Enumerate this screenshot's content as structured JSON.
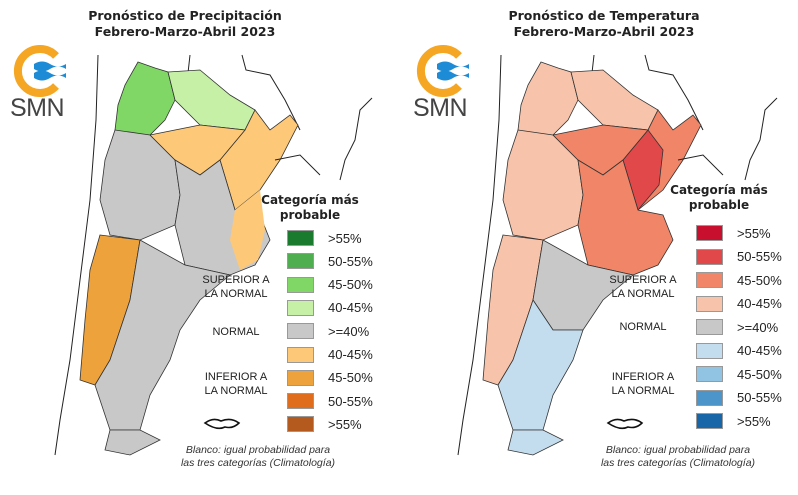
{
  "logo": {
    "text": "SMN",
    "colors": {
      "ring": "#f5a623",
      "waves": "#1e8bd6"
    }
  },
  "panels": [
    {
      "id": "precipitation",
      "title_line1": "Pronóstico de Precipitación",
      "title_line2": "Febrero-Marzo-Abril 2023",
      "legend": {
        "title_line1": "Categoría más",
        "title_line2": "probable",
        "groups": [
          {
            "label_line1": "SUPERIOR A",
            "label_line2": "LA NORMAL"
          },
          {
            "label_line1": "NORMAL",
            "label_line2": ""
          },
          {
            "label_line1": "INFERIOR A",
            "label_line2": "LA NORMAL"
          }
        ],
        "items": [
          {
            "label": ">55%",
            "color": "#1a7a2e",
            "category": "superior"
          },
          {
            "label": "50-55%",
            "color": "#4fae4f",
            "category": "superior"
          },
          {
            "label": "45-50%",
            "color": "#80d766",
            "category": "superior"
          },
          {
            "label": "40-45%",
            "color": "#c6f0a6",
            "category": "superior"
          },
          {
            "label": ">=40%",
            "color": "#c8c8c8",
            "category": "normal"
          },
          {
            "label": "40-45%",
            "color": "#fdc878",
            "category": "inferior"
          },
          {
            "label": "45-50%",
            "color": "#eda23c",
            "category": "inferior"
          },
          {
            "label": "50-55%",
            "color": "#e06d1e",
            "category": "inferior"
          },
          {
            "label": ">55%",
            "color": "#b55a1e",
            "category": "inferior"
          }
        ],
        "note_line1": "Blanco: igual probabilidad para",
        "note_line2": "las tres categorías (Climatología)"
      }
    },
    {
      "id": "temperature",
      "title_line1": "Pronóstico de Temperatura",
      "title_line2": "Febrero-Marzo-Abril 2023",
      "legend": {
        "title_line1": "Categoría más",
        "title_line2": "probable",
        "groups": [
          {
            "label_line1": "SUPERIOR A",
            "label_line2": "LA NORMAL"
          },
          {
            "label_line1": "NORMAL",
            "label_line2": ""
          },
          {
            "label_line1": "INFERIOR A",
            "label_line2": "LA NORMAL"
          }
        ],
        "items": [
          {
            "label": ">55%",
            "color": "#c8102e",
            "category": "superior"
          },
          {
            "label": "50-55%",
            "color": "#e0484a",
            "category": "superior"
          },
          {
            "label": "45-50%",
            "color": "#f08568",
            "category": "superior"
          },
          {
            "label": "40-45%",
            "color": "#f7c4ab",
            "category": "superior"
          },
          {
            "label": ">=40%",
            "color": "#c8c8c8",
            "category": "normal"
          },
          {
            "label": "40-45%",
            "color": "#c4ddee",
            "category": "inferior"
          },
          {
            "label": "45-50%",
            "color": "#91c3e2",
            "category": "inferior"
          },
          {
            "label": "50-55%",
            "color": "#4b95cb",
            "category": "inferior"
          },
          {
            "label": ">55%",
            "color": "#1866a8",
            "category": "inferior"
          }
        ],
        "note_line1": "Blanco: igual probabilidad para",
        "note_line2": "las tres categorías (Climatología)"
      }
    }
  ],
  "map_regions": {
    "precipitation": {
      "north_west": "#80d766",
      "north_center": "#c6f0a6",
      "north_east": "#fdc878",
      "center": "#c8c8c8",
      "andes_south": "#eda23c",
      "patagonia": "#c8c8c8",
      "buenos_aires": "#fdc878"
    },
    "temperature": {
      "north_west": "#f7c4ab",
      "north_center": "#f7c4ab",
      "north_east": "#f08568",
      "entre_rios": "#e0484a",
      "center": "#f08568",
      "patagonia_north": "#c8c8c8",
      "andes_south": "#f7c4ab",
      "patagonia_south": "#c4ddee",
      "buenos_aires": "#f08568"
    }
  }
}
